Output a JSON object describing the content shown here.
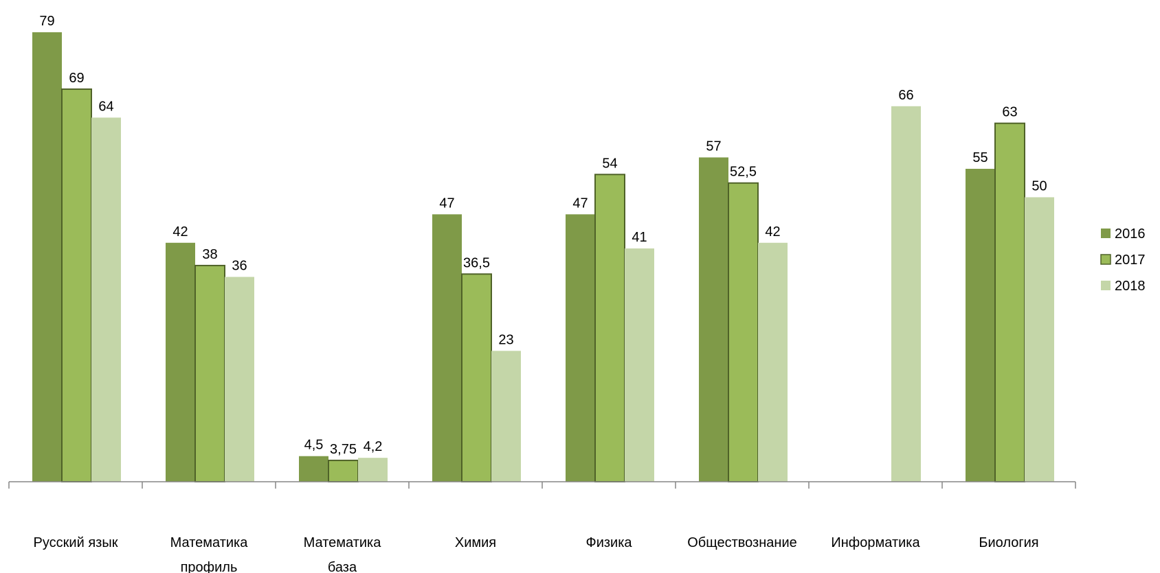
{
  "chart_data": {
    "type": "bar",
    "categories": [
      [
        "Русский язык"
      ],
      [
        "Математика",
        "профиль"
      ],
      [
        "Математика",
        "база"
      ],
      [
        "Химия"
      ],
      [
        "Физика"
      ],
      [
        "Обществознание"
      ],
      [
        "Информатика"
      ],
      [
        "Биология"
      ]
    ],
    "series": [
      {
        "name": "2016",
        "color": "#7f9a48",
        "border": false,
        "values": [
          79,
          42,
          4.5,
          47,
          47,
          57,
          null,
          55
        ],
        "labels": [
          "79",
          "42",
          "4,5",
          "47",
          "47",
          "57",
          null,
          "55"
        ]
      },
      {
        "name": "2017",
        "color": "#9bbb59",
        "border": true,
        "border_color": "#4f6228",
        "values": [
          69,
          38,
          3.75,
          36.5,
          54,
          52.5,
          null,
          63
        ],
        "labels": [
          "69",
          "38",
          "3,75",
          "36,5",
          "54",
          "52,5",
          null,
          "63"
        ]
      },
      {
        "name": "2018",
        "color": "#c4d6a8",
        "border": false,
        "values": [
          64,
          36,
          4.2,
          23,
          41,
          42,
          66,
          50
        ],
        "labels": [
          "64",
          "36",
          "4,2",
          "23",
          "41",
          "42",
          "66",
          "50"
        ]
      }
    ],
    "ylim": [
      0,
      85
    ],
    "grid": false,
    "legend": "right"
  }
}
